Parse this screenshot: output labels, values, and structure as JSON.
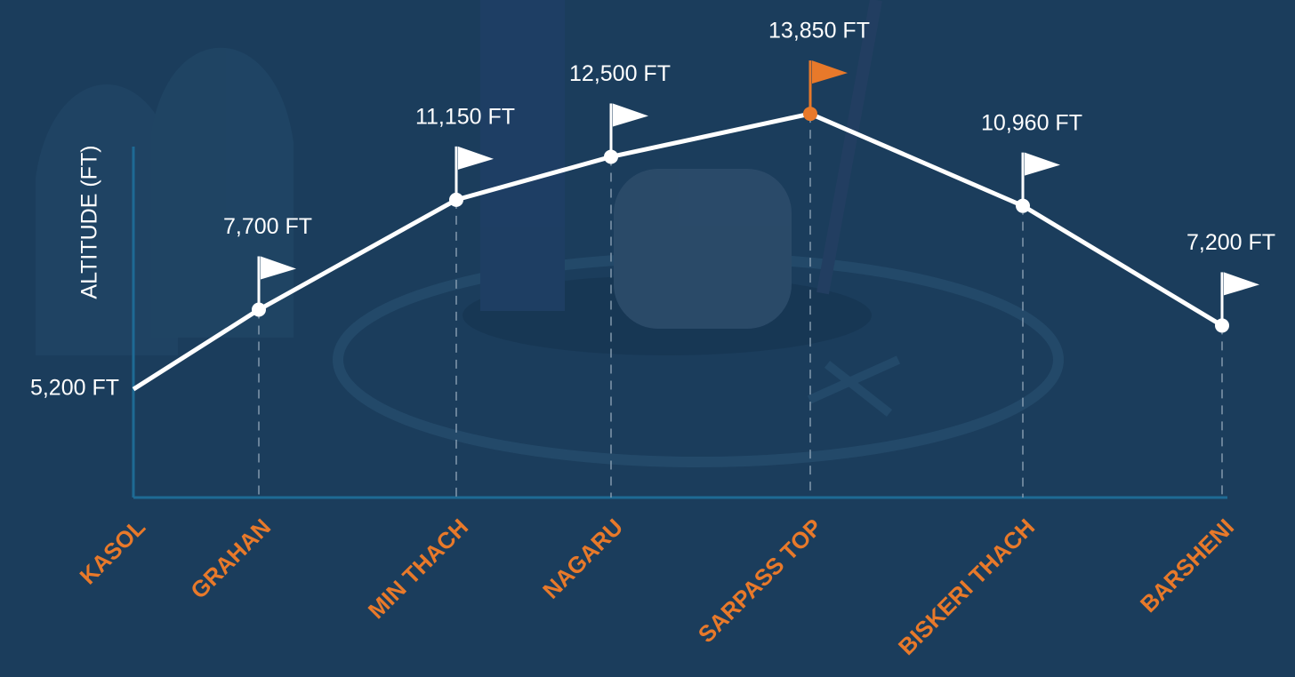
{
  "chart_data": {
    "type": "line",
    "y_label": "ALTITUDE (FT)",
    "categories": [
      "KASOL",
      "GRAHAN",
      "MIN THACH",
      "NAGARU",
      "SARPASS TOP",
      "BISKERI THACH",
      "BARSHENI"
    ],
    "series": [
      {
        "name": null,
        "color": "#ffffff",
        "values": [
          5200,
          7700,
          11150,
          12500,
          13850,
          10960,
          7200
        ],
        "value_labels": [
          "5,200 FT",
          "7,700 FT",
          "11,150 FT",
          "12,500 FT",
          "13,850 FT",
          "10,960 FT",
          "7,200 FT"
        ],
        "marker_colors": [
          null,
          "#ffffff",
          "#ffffff",
          "#ffffff",
          "#e8792a",
          "#ffffff",
          "#ffffff"
        ]
      }
    ],
    "category_color": "#e8792a",
    "ylim": [
      1800,
      16000
    ]
  }
}
